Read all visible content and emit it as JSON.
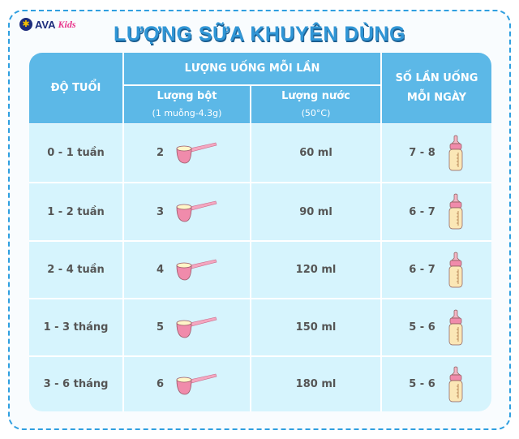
{
  "brand": {
    "logo_text": "AVA Kids"
  },
  "title": "LƯỢNG SỮA KHUYÊN DÙNG",
  "headers": {
    "age": "ĐỘ TUỔI",
    "per_feed": "LƯỢNG UỐNG MỖI LẦN",
    "powder": "Lượng bột",
    "powder_note": "(1 muỗng-4.3g)",
    "water": "Lượng nước",
    "water_note": "(50°C)",
    "times": "SỐ LẦN UỐNG",
    "times2": "MỖI NGÀY"
  },
  "rows": [
    {
      "age": "0 - 1 tuần",
      "scoops": "2",
      "water": "60 ml",
      "times": "7 - 8"
    },
    {
      "age": "1 - 2 tuần",
      "scoops": "3",
      "water": "90 ml",
      "times": "6 - 7"
    },
    {
      "age": "2 - 4 tuần",
      "scoops": "4",
      "water": "120 ml",
      "times": "6 - 7"
    },
    {
      "age": "1 - 3 tháng",
      "scoops": "5",
      "water": "150 ml",
      "times": "5 - 6"
    },
    {
      "age": "3 - 6 tháng",
      "scoops": "6",
      "water": "180 ml",
      "times": "5 - 6"
    }
  ],
  "icons": {
    "powder": "measuring-scoop-icon",
    "times": "baby-bottle-icon"
  },
  "colors": {
    "header": "#5cb8e7",
    "body": "#d6f4fd",
    "title": "#3096d6",
    "border": "#2f9fe0"
  }
}
